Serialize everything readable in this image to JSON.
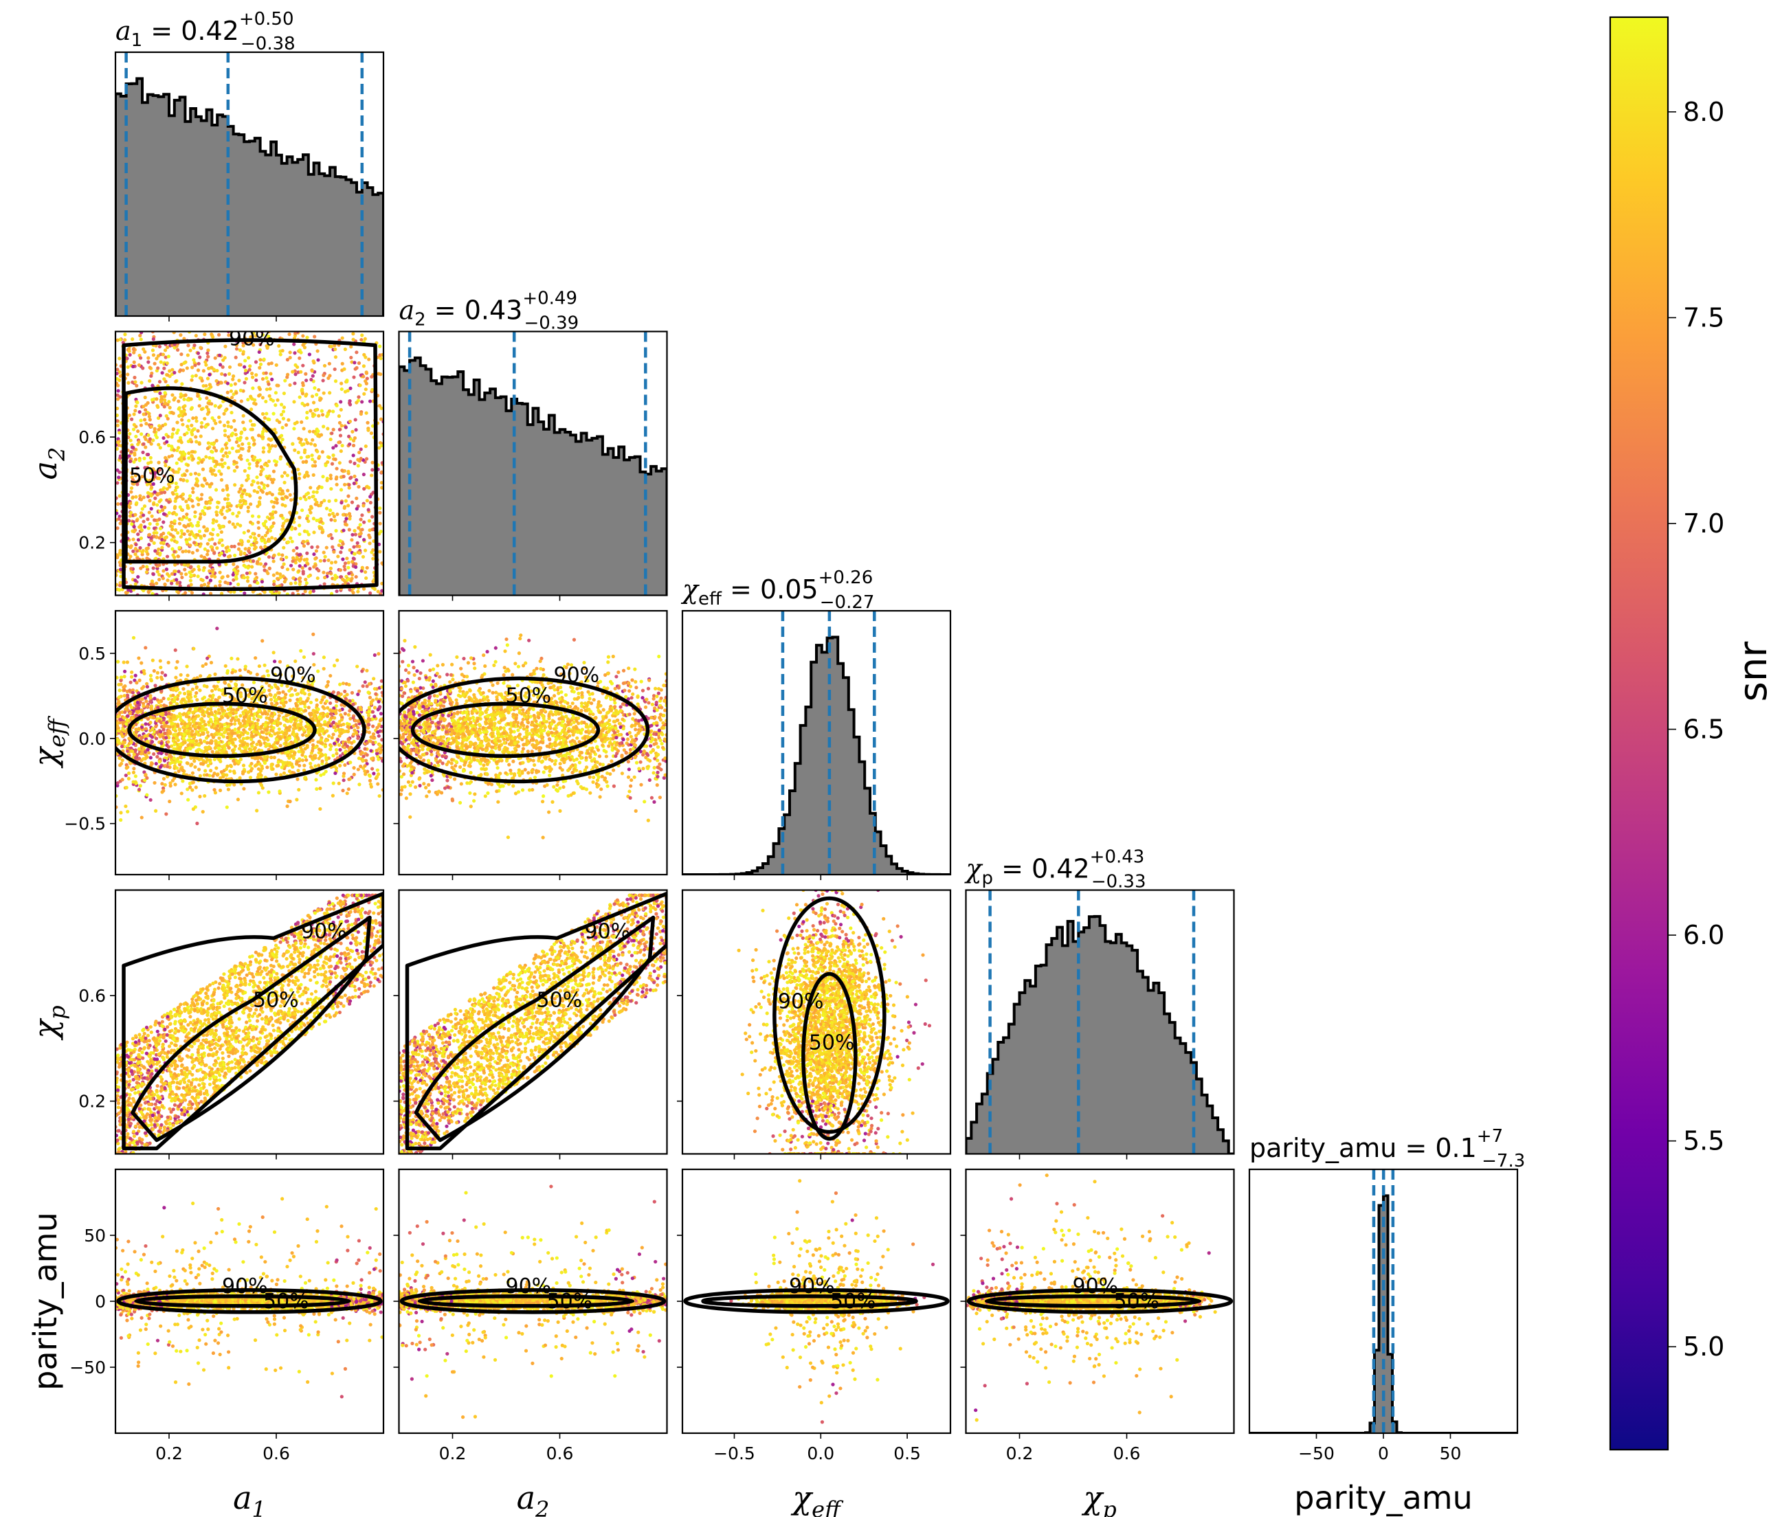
{
  "chart_data": {
    "type": "corner",
    "parameters": [
      {
        "key": "a1",
        "label_base": "a",
        "label_sub": "1",
        "range": [
          0.0,
          1.0
        ],
        "ticks": [
          0.2,
          0.6
        ],
        "tick_labels": [
          "0.2",
          "0.6"
        ],
        "title": {
          "median": "0.42",
          "plus": "+0.50",
          "minus": "−0.38"
        },
        "quantiles": [
          0.04,
          0.42,
          0.92
        ],
        "hist_shape": "linear-decline"
      },
      {
        "key": "a2",
        "label_base": "a",
        "label_sub": "2",
        "range": [
          0.0,
          1.0
        ],
        "ticks": [
          0.2,
          0.6
        ],
        "tick_labels": [
          "0.2",
          "0.6"
        ],
        "title": {
          "median": "0.43",
          "plus": "+0.49",
          "minus": "−0.39"
        },
        "quantiles": [
          0.04,
          0.43,
          0.92
        ],
        "hist_shape": "linear-decline"
      },
      {
        "key": "chi_eff",
        "label_base": "χ",
        "label_sub": "eff",
        "range": [
          -0.8,
          0.75
        ],
        "ticks": [
          -0.5,
          0.0,
          0.5
        ],
        "tick_labels": [
          "−0.5",
          "0.0",
          "0.5"
        ],
        "title": {
          "median": "0.05",
          "plus": "+0.26",
          "minus": "−0.27"
        },
        "quantiles": [
          -0.22,
          0.05,
          0.31
        ],
        "hist_shape": "gaussian"
      },
      {
        "key": "chi_p",
        "label_base": "χ",
        "label_sub": "p",
        "range": [
          0.0,
          1.0
        ],
        "ticks": [
          0.2,
          0.6
        ],
        "tick_labels": [
          "0.2",
          "0.6"
        ],
        "title": {
          "median": "0.42",
          "plus": "+0.43",
          "minus": "−0.33"
        },
        "quantiles": [
          0.09,
          0.42,
          0.85
        ],
        "hist_shape": "skewed"
      },
      {
        "key": "parity_amu",
        "label_plain": "parity_amu",
        "range": [
          -100,
          100
        ],
        "ticks": [
          -50,
          0,
          50
        ],
        "tick_labels": [
          "−50",
          "0",
          "50"
        ],
        "title": {
          "name": "parity_amu",
          "median": "0.1",
          "plus": "+7",
          "minus": "−7.3"
        },
        "quantiles": [
          -7.2,
          0.1,
          7.1
        ],
        "hist_shape": "narrow-peak"
      }
    ],
    "y_ticks": {
      "a2": {
        "ticks": [
          0.2,
          0.6
        ],
        "labels": [
          "0.2",
          "0.6"
        ]
      },
      "chi_eff": {
        "ticks": [
          -0.5,
          0.0,
          0.5
        ],
        "labels": [
          "−0.5",
          "0.0",
          "0.5"
        ]
      },
      "chi_p": {
        "ticks": [
          0.2,
          0.6
        ],
        "labels": [
          "0.2",
          "0.6"
        ]
      },
      "parity_amu": {
        "ticks": [
          -50,
          0,
          50
        ],
        "labels": [
          "−50",
          "0",
          "50"
        ]
      }
    },
    "contour_levels": [
      "50%",
      "90%"
    ],
    "colorbar": {
      "label": "snr",
      "range": [
        4.75,
        8.23
      ],
      "ticks": [
        5.0,
        5.5,
        6.0,
        6.5,
        7.0,
        7.5,
        8.0
      ],
      "tick_labels": [
        "5.0",
        "5.5",
        "6.0",
        "6.5",
        "7.0",
        "7.5",
        "8.0"
      ],
      "colormap": "plasma",
      "colormap_stops": [
        "#0d0887",
        "#46039f",
        "#7201a8",
        "#9c179e",
        "#bd3786",
        "#d8576b",
        "#ed7953",
        "#fb9f3a",
        "#fdca26",
        "#f0f921"
      ]
    },
    "colors": {
      "histogram_fill": "#808080",
      "quantile_line": "#1f77b4",
      "contour": "#000000"
    }
  }
}
